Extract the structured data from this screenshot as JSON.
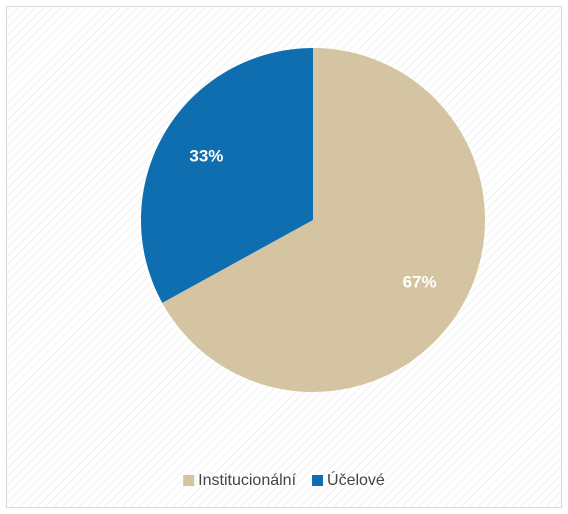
{
  "chart_data": {
    "type": "pie",
    "categories": [
      "Institucionální",
      "Účelové"
    ],
    "values": [
      67,
      33
    ],
    "value_labels": [
      "67%",
      "33%"
    ],
    "colors": [
      "#d5c4a1",
      "#0e6eb0"
    ],
    "legend": "bottom"
  }
}
